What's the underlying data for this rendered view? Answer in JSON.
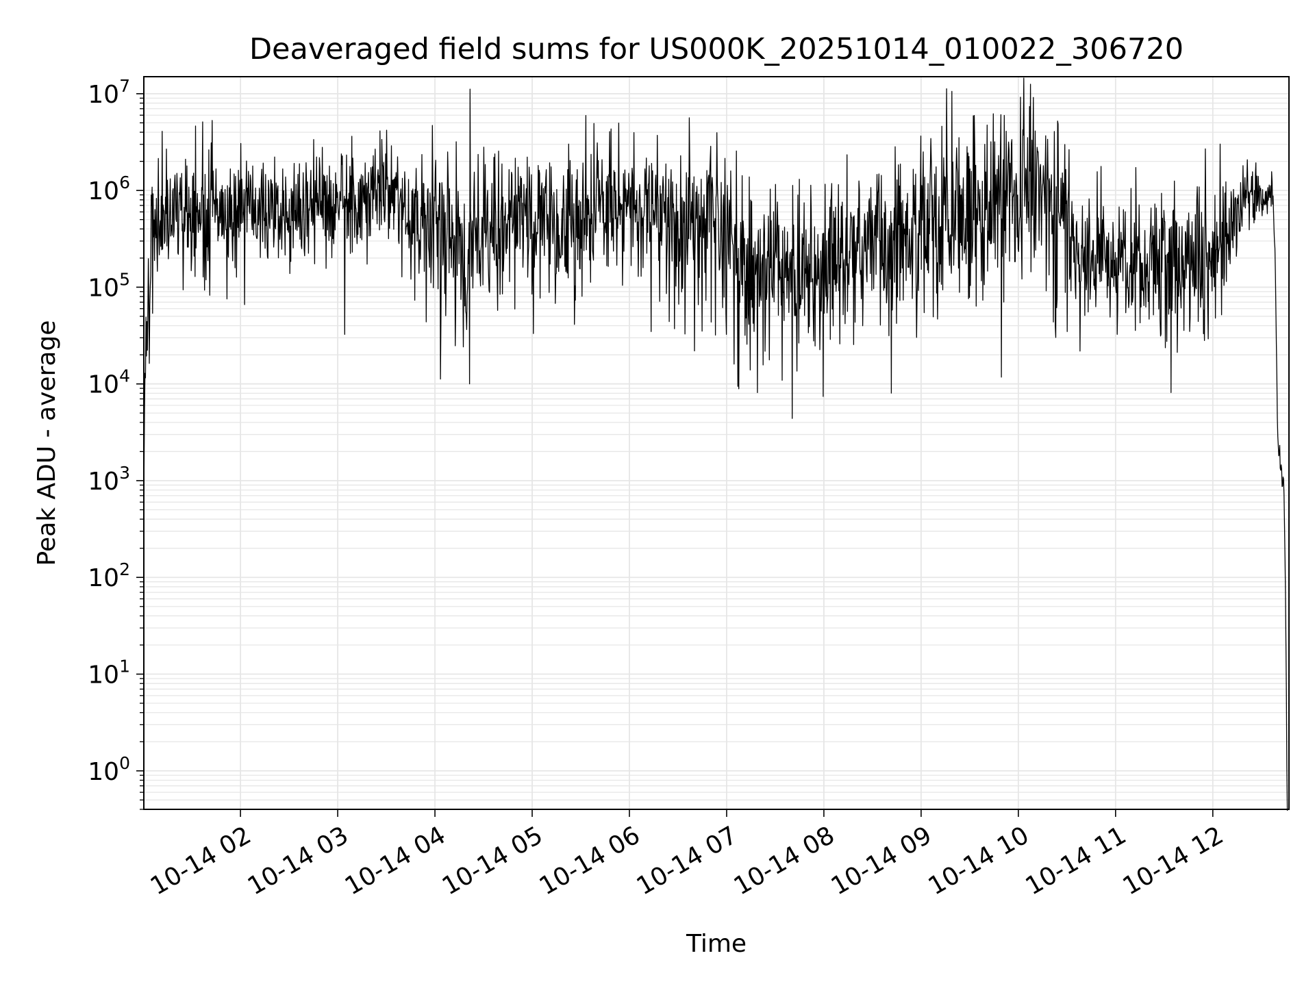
{
  "chart_data": {
    "type": "line",
    "title": "Deaveraged field sums for US000K_20251014_010022_306720",
    "xlabel": "Time",
    "ylabel": "Peak ADU - average",
    "yscale": "log",
    "ylim": [
      0.4,
      15000000
    ],
    "xlim": [
      "2025-10-14T01:00:22",
      "2025-10-14T12:47:00"
    ],
    "grid": true,
    "line_color": "#000000",
    "grid_color": "#e6e6e6",
    "x_ticks": [
      {
        "t": "2025-10-14T02:00",
        "label": "10-14 02"
      },
      {
        "t": "2025-10-14T03:00",
        "label": "10-14 03"
      },
      {
        "t": "2025-10-14T04:00",
        "label": "10-14 04"
      },
      {
        "t": "2025-10-14T05:00",
        "label": "10-14 05"
      },
      {
        "t": "2025-10-14T06:00",
        "label": "10-14 06"
      },
      {
        "t": "2025-10-14T07:00",
        "label": "10-14 07"
      },
      {
        "t": "2025-10-14T08:00",
        "label": "10-14 08"
      },
      {
        "t": "2025-10-14T09:00",
        "label": "10-14 09"
      },
      {
        "t": "2025-10-14T10:00",
        "label": "10-14 10"
      },
      {
        "t": "2025-10-14T11:00",
        "label": "10-14 11"
      },
      {
        "t": "2025-10-14T12:00",
        "label": "10-14 12"
      }
    ],
    "y_ticks": [
      {
        "value": 1,
        "base": "10",
        "exp": "0"
      },
      {
        "value": 10,
        "base": "10",
        "exp": "1"
      },
      {
        "value": 100,
        "base": "10",
        "exp": "2"
      },
      {
        "value": 1000,
        "base": "10",
        "exp": "3"
      },
      {
        "value": 10000,
        "base": "10",
        "exp": "4"
      },
      {
        "value": 100000,
        "base": "10",
        "exp": "5"
      },
      {
        "value": 1000000,
        "base": "10",
        "exp": "6"
      },
      {
        "value": 10000000,
        "base": "10",
        "exp": "7"
      }
    ],
    "series": [
      {
        "envelope": [
          {
            "t": "2025-10-14T01:00:30",
            "median": 2000,
            "spread": 0.2
          },
          {
            "t": "2025-10-14T01:02:00",
            "median": 40000,
            "spread": 0.3
          },
          {
            "t": "2025-10-14T01:05:00",
            "median": 500000,
            "spread": 0.35
          },
          {
            "t": "2025-10-14T01:30:00",
            "median": 650000,
            "spread": 0.32
          },
          {
            "t": "2025-10-14T02:00:00",
            "median": 650000,
            "spread": 0.3
          },
          {
            "t": "2025-10-14T03:00:00",
            "median": 700000,
            "spread": 0.3
          },
          {
            "t": "2025-10-14T03:35:00",
            "median": 900000,
            "spread": 0.28
          },
          {
            "t": "2025-10-14T04:00:00",
            "median": 350000,
            "spread": 0.42
          },
          {
            "t": "2025-10-14T04:20:00",
            "median": 280000,
            "spread": 0.42
          },
          {
            "t": "2025-10-14T04:40:00",
            "median": 500000,
            "spread": 0.38
          },
          {
            "t": "2025-10-14T05:00:00",
            "median": 550000,
            "spread": 0.38
          },
          {
            "t": "2025-10-14T05:25:00",
            "median": 400000,
            "spread": 0.45
          },
          {
            "t": "2025-10-14T05:40:00",
            "median": 650000,
            "spread": 0.35
          },
          {
            "t": "2025-10-14T06:15:00",
            "median": 650000,
            "spread": 0.35
          },
          {
            "t": "2025-10-14T06:30:00",
            "median": 350000,
            "spread": 0.45
          },
          {
            "t": "2025-10-14T07:00:00",
            "median": 400000,
            "spread": 0.42
          },
          {
            "t": "2025-10-14T07:15:00",
            "median": 150000,
            "spread": 0.45
          },
          {
            "t": "2025-10-14T07:45:00",
            "median": 120000,
            "spread": 0.45
          },
          {
            "t": "2025-10-14T08:00:00",
            "median": 200000,
            "spread": 0.45
          },
          {
            "t": "2025-10-14T08:45:00",
            "median": 300000,
            "spread": 0.45
          },
          {
            "t": "2025-10-14T09:10:00",
            "median": 600000,
            "spread": 0.5
          },
          {
            "t": "2025-10-14T09:40:00",
            "median": 800000,
            "spread": 0.5
          },
          {
            "t": "2025-10-14T10:00:00",
            "median": 1200000,
            "spread": 0.45
          },
          {
            "t": "2025-10-14T10:25:00",
            "median": 900000,
            "spread": 0.5
          },
          {
            "t": "2025-10-14T10:40:00",
            "median": 220000,
            "spread": 0.35
          },
          {
            "t": "2025-10-14T11:00:00",
            "median": 180000,
            "spread": 0.32
          },
          {
            "t": "2025-10-14T11:30:00",
            "median": 220000,
            "spread": 0.38
          },
          {
            "t": "2025-10-14T12:00:00",
            "median": 180000,
            "spread": 0.38
          },
          {
            "t": "2025-10-14T12:20:00",
            "median": 900000,
            "spread": 0.2
          },
          {
            "t": "2025-10-14T12:37:00",
            "median": 1000000,
            "spread": 0.15
          },
          {
            "t": "2025-10-14T12:38:30",
            "median": 200000,
            "spread": 0.1
          },
          {
            "t": "2025-10-14T12:40:00",
            "median": 3000,
            "spread": 0.1
          },
          {
            "t": "2025-10-14T12:42:00",
            "median": 1500,
            "spread": 0.1
          },
          {
            "t": "2025-10-14T12:44:00",
            "median": 800,
            "spread": 0.1
          },
          {
            "t": "2025-10-14T12:45:00",
            "median": 40,
            "spread": 0.1
          },
          {
            "t": "2025-10-14T12:46:00",
            "median": 0.3,
            "spread": 0.05
          }
        ]
      }
    ]
  }
}
